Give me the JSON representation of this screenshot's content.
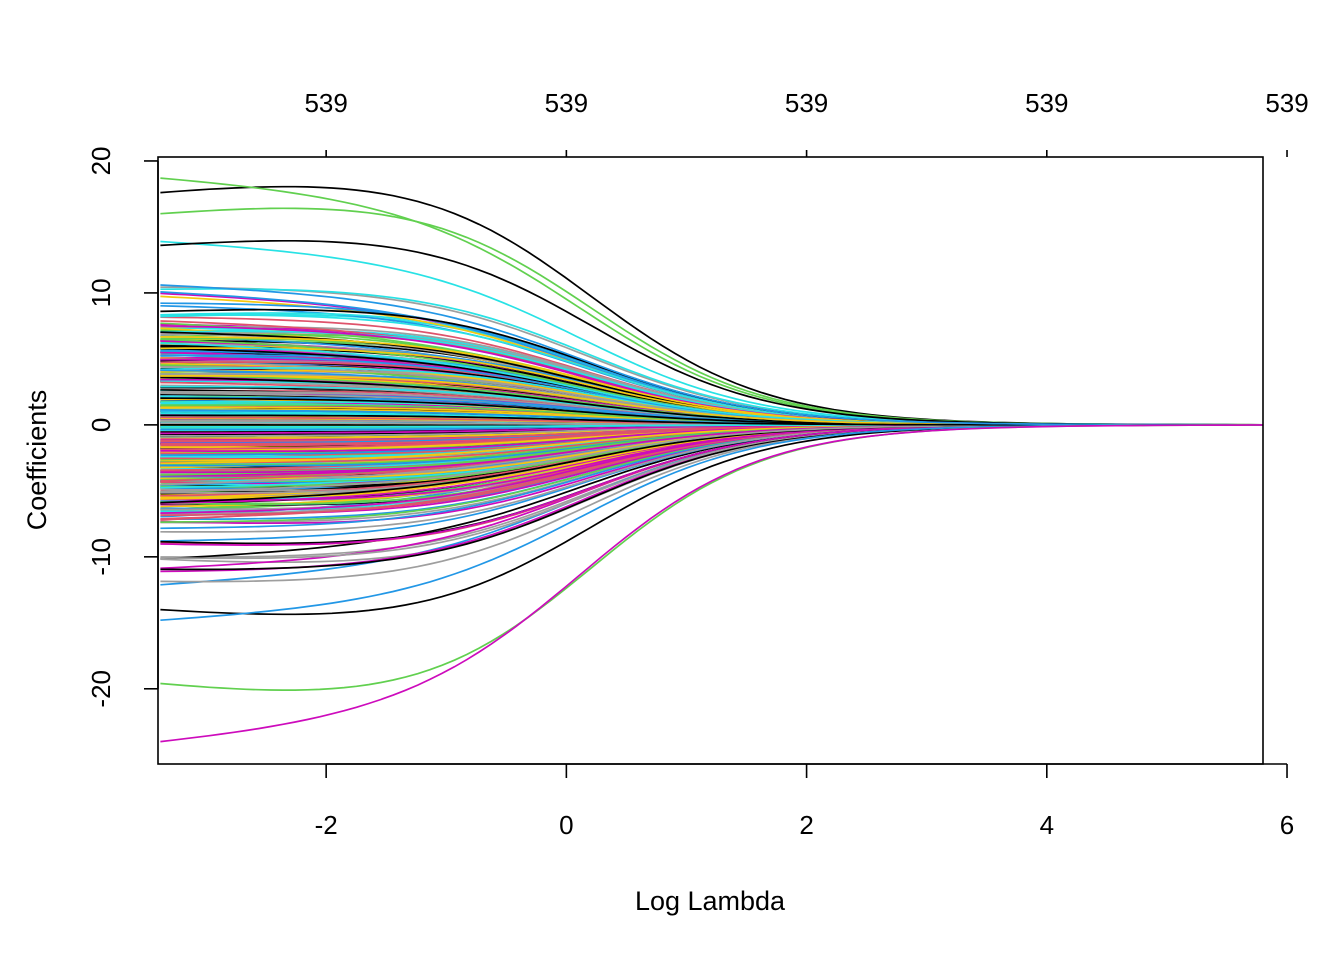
{
  "chart_data": {
    "type": "line",
    "title": "",
    "xlabel": "Log Lambda",
    "ylabel": "Coefficients",
    "xlim": [
      -3.4,
      5.8
    ],
    "ylim": [
      -25.7,
      20.3
    ],
    "x_ticks": [
      {
        "value": -2,
        "label": "-2"
      },
      {
        "value": 0,
        "label": "0"
      },
      {
        "value": 2,
        "label": "2"
      },
      {
        "value": 4,
        "label": "4"
      },
      {
        "value": 6,
        "label": "6"
      }
    ],
    "y_ticks": [
      {
        "value": -20,
        "label": "-20"
      },
      {
        "value": -10,
        "label": "-10"
      },
      {
        "value": 0,
        "label": "0"
      },
      {
        "value": 10,
        "label": "10"
      },
      {
        "value": 20,
        "label": "20"
      }
    ],
    "top_axis": {
      "ticks": [
        {
          "value": -2,
          "label": "539"
        },
        {
          "value": 0,
          "label": "539"
        },
        {
          "value": 2,
          "label": "539"
        },
        {
          "value": 4,
          "label": "539"
        },
        {
          "value": 6,
          "label": "539"
        }
      ]
    },
    "grid": false,
    "legend": "none",
    "palette": [
      "#000000",
      "#DF536B",
      "#61D04F",
      "#2297E6",
      "#28E2E5",
      "#CD0BBC",
      "#F5C710",
      "#9E9E9E"
    ],
    "x_range_of_paths": [
      -3.38,
      5.8
    ],
    "series_count": 539,
    "highlighted_series": [
      {
        "start": 17.6,
        "color": "#000000"
      },
      {
        "start": 18.7,
        "color": "#61D04F"
      },
      {
        "start": 16.0,
        "color": "#61D04F"
      },
      {
        "start": 13.9,
        "color": "#28E2E5"
      },
      {
        "start": 13.6,
        "color": "#000000"
      },
      {
        "start": 10.6,
        "color": "#2297E6"
      },
      {
        "start": -14.0,
        "color": "#000000"
      },
      {
        "start": -14.8,
        "color": "#2297E6"
      },
      {
        "start": -19.6,
        "color": "#61D04F"
      },
      {
        "start": -24.0,
        "color": "#CD0BBC"
      }
    ]
  }
}
